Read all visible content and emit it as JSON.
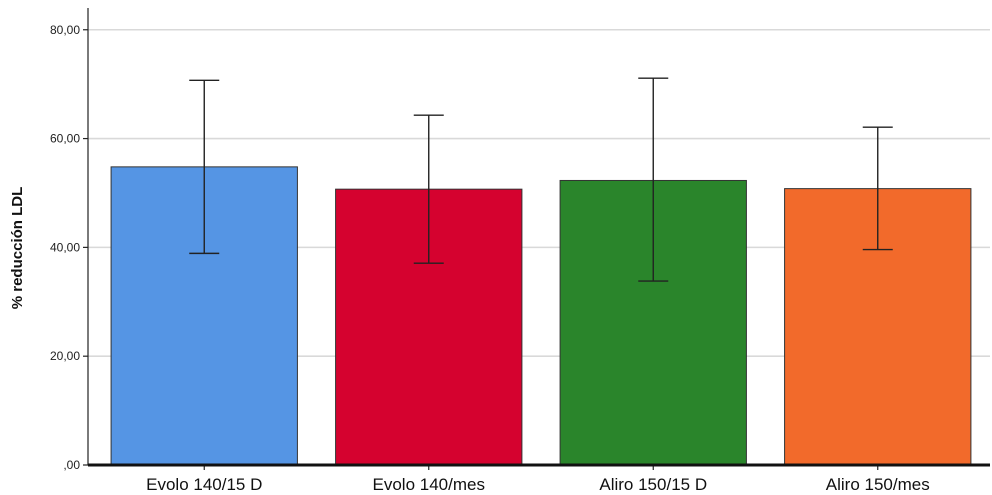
{
  "chart_data": {
    "type": "bar",
    "ylabel": "% reducción LDL",
    "xlabel": "",
    "ylim": [
      0,
      84
    ],
    "yticks": [
      0,
      20,
      40,
      60,
      80
    ],
    "ytick_labels": [
      ",00",
      "20,00",
      "40,00",
      "60,00",
      "80,00"
    ],
    "grid": true,
    "categories": [
      "Evolo 140/15 D",
      "Evolo 140/mes",
      "Aliro 150/15 D",
      "Aliro 150/mes"
    ],
    "values": [
      54.8,
      50.7,
      52.3,
      50.8
    ],
    "error_low": [
      38.9,
      37.1,
      33.8,
      39.6
    ],
    "error_high": [
      70.7,
      64.3,
      71.1,
      62.1
    ],
    "colors": [
      "#5595e4",
      "#d5022f",
      "#2a852b",
      "#f26a2b"
    ]
  }
}
